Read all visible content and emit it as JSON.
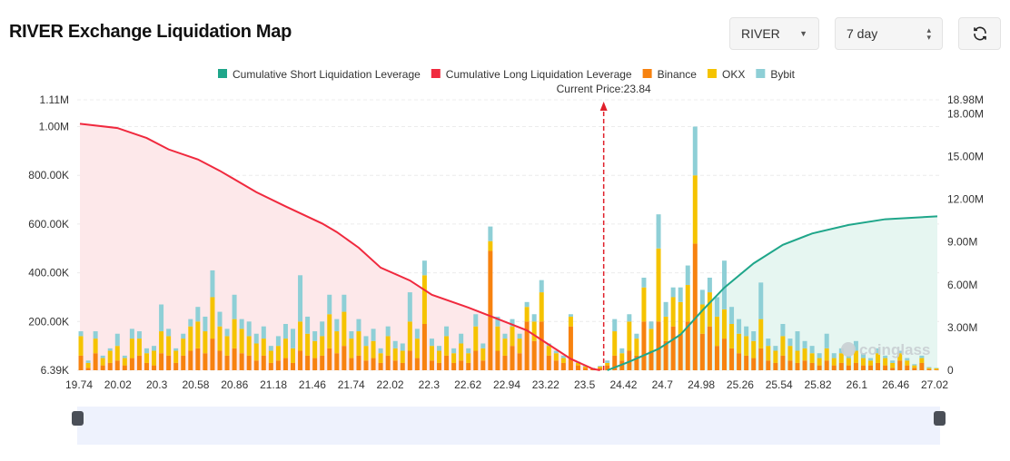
{
  "header": {
    "title": "RIVER Exchange Liquidation Map",
    "symbol": "RIVER",
    "period": "7 day",
    "refresh_icon": "refresh-icon"
  },
  "colors": {
    "short": "#1fa68a",
    "long": "#f0293e",
    "binance": "#f7820f",
    "okx": "#f5c300",
    "bybit": "#8ecfd6",
    "short_fill": "#e6f6f1",
    "long_fill": "#fde8ea",
    "current_price": "#e0202a"
  },
  "watermark": "coinglass",
  "chart_data": {
    "type": "bar",
    "legend": [
      "Cumulative Short Liquidation Leverage",
      "Cumulative Long Liquidation Leverage",
      "Binance",
      "OKX",
      "Bybit"
    ],
    "legend_position": "top",
    "annotation": "Current Price:23.84",
    "current_price": 23.84,
    "x_tick_labels": [
      "19.74",
      "20.02",
      "20.3",
      "20.58",
      "20.86",
      "21.18",
      "21.46",
      "21.74",
      "22.02",
      "22.3",
      "22.62",
      "22.94",
      "23.22",
      "23.5",
      "24.42",
      "24.7",
      "24.98",
      "25.26",
      "25.54",
      "25.82",
      "26.1",
      "26.46",
      "27.02"
    ],
    "left_axis": {
      "ticks": [
        "6.39K",
        "200.00K",
        "400.00K",
        "600.00K",
        "800.00K",
        "1.00M",
        "1.11M"
      ],
      "range_k": [
        0,
        1110
      ]
    },
    "right_axis": {
      "ticks": [
        "0",
        "3.00M",
        "6.00M",
        "9.00M",
        "12.00M",
        "15.00M",
        "18.00M",
        "18.98M"
      ],
      "range_m": [
        0,
        18.98
      ]
    },
    "grid": true,
    "bars_k_binance_okx_bybit": [
      [
        60,
        80,
        20
      ],
      [
        10,
        20,
        10
      ],
      [
        70,
        60,
        30
      ],
      [
        20,
        30,
        10
      ],
      [
        30,
        50,
        10
      ],
      [
        40,
        60,
        50
      ],
      [
        20,
        30,
        10
      ],
      [
        50,
        80,
        40
      ],
      [
        60,
        70,
        30
      ],
      [
        30,
        40,
        20
      ],
      [
        20,
        60,
        20
      ],
      [
        70,
        90,
        110
      ],
      [
        60,
        80,
        30
      ],
      [
        30,
        50,
        10
      ],
      [
        60,
        70,
        20
      ],
      [
        80,
        100,
        30
      ],
      [
        90,
        110,
        60
      ],
      [
        70,
        90,
        60
      ],
      [
        130,
        170,
        110
      ],
      [
        80,
        100,
        60
      ],
      [
        60,
        80,
        30
      ],
      [
        90,
        120,
        100
      ],
      [
        70,
        100,
        40
      ],
      [
        60,
        80,
        60
      ],
      [
        40,
        70,
        40
      ],
      [
        60,
        70,
        50
      ],
      [
        30,
        50,
        20
      ],
      [
        40,
        60,
        40
      ],
      [
        50,
        80,
        60
      ],
      [
        30,
        60,
        80
      ],
      [
        80,
        120,
        190
      ],
      [
        60,
        90,
        70
      ],
      [
        50,
        70,
        40
      ],
      [
        60,
        80,
        60
      ],
      [
        90,
        140,
        80
      ],
      [
        70,
        90,
        50
      ],
      [
        100,
        140,
        70
      ],
      [
        50,
        80,
        30
      ],
      [
        60,
        100,
        50
      ],
      [
        40,
        60,
        40
      ],
      [
        50,
        70,
        50
      ],
      [
        30,
        40,
        20
      ],
      [
        60,
        80,
        40
      ],
      [
        40,
        50,
        30
      ],
      [
        30,
        50,
        30
      ],
      [
        80,
        120,
        120
      ],
      [
        50,
        80,
        40
      ],
      [
        190,
        200,
        60
      ],
      [
        40,
        60,
        30
      ],
      [
        30,
        50,
        20
      ],
      [
        60,
        80,
        40
      ],
      [
        30,
        40,
        20
      ],
      [
        40,
        70,
        40
      ],
      [
        30,
        40,
        20
      ],
      [
        80,
        100,
        50
      ],
      [
        40,
        50,
        20
      ],
      [
        490,
        40,
        60
      ],
      [
        80,
        100,
        40
      ],
      [
        60,
        70,
        20
      ],
      [
        100,
        80,
        30
      ],
      [
        70,
        60,
        20
      ],
      [
        200,
        60,
        20
      ],
      [
        120,
        80,
        30
      ],
      [
        200,
        120,
        50
      ],
      [
        60,
        40,
        10
      ],
      [
        40,
        30,
        10
      ],
      [
        30,
        20,
        10
      ],
      [
        180,
        40,
        10
      ],
      [
        20,
        10,
        5
      ],
      [
        10,
        5,
        5
      ],
      [
        5,
        3,
        2
      ],
      [
        10,
        5,
        3
      ],
      [
        20,
        10,
        10
      ],
      [
        60,
        100,
        50
      ],
      [
        40,
        30,
        20
      ],
      [
        80,
        120,
        30
      ],
      [
        60,
        70,
        20
      ],
      [
        200,
        140,
        40
      ],
      [
        80,
        90,
        30
      ],
      [
        200,
        300,
        140
      ],
      [
        120,
        100,
        60
      ],
      [
        180,
        120,
        40
      ],
      [
        150,
        130,
        60
      ],
      [
        200,
        150,
        80
      ],
      [
        520,
        280,
        200
      ],
      [
        150,
        120,
        60
      ],
      [
        180,
        140,
        60
      ],
      [
        100,
        120,
        80
      ],
      [
        130,
        120,
        200
      ],
      [
        90,
        100,
        70
      ],
      [
        70,
        80,
        60
      ],
      [
        60,
        80,
        40
      ],
      [
        50,
        70,
        40
      ],
      [
        90,
        120,
        150
      ],
      [
        40,
        60,
        30
      ],
      [
        30,
        50,
        20
      ],
      [
        60,
        80,
        50
      ],
      [
        40,
        60,
        30
      ],
      [
        30,
        50,
        80
      ],
      [
        40,
        50,
        30
      ],
      [
        30,
        40,
        30
      ],
      [
        20,
        30,
        20
      ],
      [
        40,
        50,
        60
      ],
      [
        20,
        30,
        20
      ],
      [
        30,
        40,
        20
      ],
      [
        20,
        30,
        10
      ],
      [
        30,
        50,
        40
      ],
      [
        20,
        30,
        20
      ],
      [
        20,
        20,
        10
      ],
      [
        30,
        40,
        20
      ],
      [
        20,
        30,
        10
      ],
      [
        10,
        20,
        10
      ],
      [
        40,
        30,
        10
      ],
      [
        20,
        20,
        10
      ],
      [
        10,
        10,
        5
      ],
      [
        30,
        20,
        10
      ],
      [
        5,
        5,
        3
      ],
      [
        3,
        5,
        2
      ]
    ],
    "long_line_m": [
      [
        0,
        17.3
      ],
      [
        5,
        17
      ],
      [
        9,
        16.3
      ],
      [
        12,
        15.5
      ],
      [
        16,
        14.8
      ],
      [
        19,
        14
      ],
      [
        24,
        12.5
      ],
      [
        28,
        11.5
      ],
      [
        33,
        10.3
      ],
      [
        35,
        9.7
      ],
      [
        38,
        8.6
      ],
      [
        41,
        7.2
      ],
      [
        45,
        6.3
      ],
      [
        48,
        5.3
      ],
      [
        53,
        4.4
      ],
      [
        57,
        3.6
      ],
      [
        61,
        2.8
      ],
      [
        64,
        1.8
      ],
      [
        67,
        0.8
      ],
      [
        70,
        0.1
      ],
      [
        71,
        0
      ]
    ],
    "short_line_m": [
      [
        72,
        0
      ],
      [
        75,
        0.6
      ],
      [
        79,
        1.5
      ],
      [
        82,
        2.5
      ],
      [
        85,
        4.2
      ],
      [
        88,
        5.8
      ],
      [
        92,
        7.5
      ],
      [
        96,
        8.8
      ],
      [
        100,
        9.6
      ],
      [
        105,
        10.2
      ],
      [
        110,
        10.6
      ],
      [
        117,
        10.8
      ]
    ]
  }
}
